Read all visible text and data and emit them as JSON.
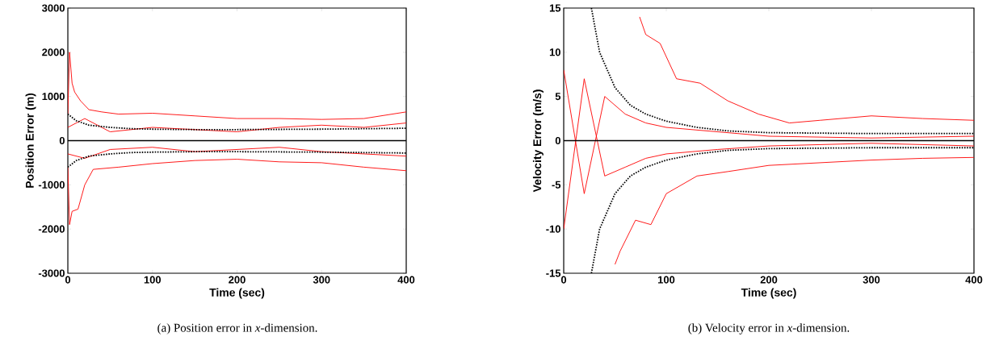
{
  "chart_data": [
    {
      "type": "line",
      "xlabel": "Time (sec)",
      "ylabel": "Position Error (m)",
      "xlim": [
        0,
        400
      ],
      "ylim": [
        -3000,
        3000
      ],
      "xticks": [
        0,
        100,
        200,
        300,
        400
      ],
      "yticks": [
        -3000,
        -2000,
        -1000,
        0,
        1000,
        2000,
        3000
      ],
      "series": [
        {
          "color": "#ff0000",
          "line_style": "solid",
          "x": [
            0,
            2,
            5,
            8,
            15,
            25,
            40,
            60,
            100,
            150,
            200,
            250,
            300,
            350,
            400
          ],
          "values": [
            600,
            2000,
            1300,
            1100,
            900,
            700,
            650,
            600,
            620,
            560,
            500,
            500,
            480,
            500,
            650
          ]
        },
        {
          "color": "#ff0000",
          "line_style": "solid",
          "x": [
            0,
            2,
            5,
            12,
            20,
            30,
            60,
            100,
            150,
            200,
            250,
            300,
            350,
            400
          ],
          "values": [
            -600,
            -1900,
            -1600,
            -1550,
            -1000,
            -650,
            -600,
            -520,
            -450,
            -420,
            -480,
            -500,
            -600,
            -680
          ]
        },
        {
          "color": "#ff0000",
          "line_style": "solid",
          "x": [
            0,
            20,
            50,
            100,
            150,
            200,
            250,
            300,
            350,
            400
          ],
          "values": [
            300,
            500,
            200,
            300,
            250,
            200,
            300,
            350,
            300,
            400
          ]
        },
        {
          "color": "#ff0000",
          "line_style": "solid",
          "x": [
            0,
            20,
            50,
            100,
            150,
            200,
            250,
            300,
            350,
            400
          ],
          "values": [
            -300,
            -400,
            -200,
            -150,
            -250,
            -200,
            -150,
            -250,
            -300,
            -350
          ]
        },
        {
          "color": "#000000",
          "line_style": "dotted",
          "x": [
            0,
            10,
            25,
            50,
            75,
            100,
            150,
            200,
            300,
            400
          ],
          "values": [
            600,
            450,
            350,
            300,
            270,
            260,
            250,
            250,
            260,
            280
          ]
        },
        {
          "color": "#000000",
          "line_style": "dotted",
          "x": [
            0,
            10,
            25,
            50,
            75,
            100,
            150,
            200,
            300,
            400
          ],
          "values": [
            -600,
            -450,
            -350,
            -300,
            -270,
            -260,
            -250,
            -250,
            -260,
            -280
          ]
        }
      ],
      "ref_lines": [
        {
          "axis": "y",
          "value": 0,
          "color": "#000000"
        }
      ],
      "annotations": [
        "(a) Position error in *x*-dimension."
      ]
    },
    {
      "type": "line",
      "xlabel": "Time (sec)",
      "ylabel": "Velocity Error (m/s)",
      "xlim": [
        0,
        400
      ],
      "ylim": [
        -15,
        15
      ],
      "xticks": [
        0,
        100,
        200,
        300,
        400
      ],
      "yticks": [
        -15,
        -10,
        -5,
        0,
        5,
        10,
        15
      ],
      "series": [
        {
          "color": "#ff0000",
          "line_style": "solid",
          "x": [
            74,
            80,
            94,
            110,
            133,
            160,
            190,
            220,
            250,
            300,
            350,
            400
          ],
          "values": [
            14,
            12,
            11,
            7,
            6.5,
            4.5,
            3,
            2,
            2.3,
            2.8,
            2.5,
            2.3
          ]
        },
        {
          "color": "#ff0000",
          "line_style": "solid",
          "x": [
            50,
            55,
            70,
            85,
            100,
            130,
            160,
            200,
            250,
            300,
            350,
            400
          ],
          "values": [
            -14,
            -12.5,
            -9,
            -9.5,
            -6,
            -4,
            -3.5,
            -2.8,
            -2.5,
            -2.2,
            -2,
            -1.9
          ]
        },
        {
          "color": "#ff0000",
          "line_style": "solid",
          "x": [
            0,
            20,
            40,
            60,
            80,
            100,
            150,
            200,
            300,
            400
          ],
          "values": [
            8,
            -6,
            5,
            3,
            2,
            1.5,
            1,
            0.5,
            0.3,
            0.5
          ]
        },
        {
          "color": "#ff0000",
          "line_style": "solid",
          "x": [
            0,
            20,
            40,
            60,
            80,
            100,
            150,
            200,
            300,
            400
          ],
          "values": [
            -10,
            7,
            -4,
            -3,
            -2,
            -1.5,
            -1,
            -0.6,
            -0.3,
            -0.6
          ]
        },
        {
          "color": "#000000",
          "line_style": "dotted",
          "x": [
            27,
            35,
            50,
            65,
            80,
            100,
            130,
            160,
            200,
            300,
            400
          ],
          "values": [
            15,
            10,
            6,
            4,
            3,
            2.2,
            1.5,
            1.1,
            0.9,
            0.8,
            0.8
          ]
        },
        {
          "color": "#000000",
          "line_style": "dotted",
          "x": [
            27,
            35,
            50,
            65,
            80,
            100,
            130,
            160,
            200,
            300,
            400
          ],
          "values": [
            -15,
            -10,
            -6,
            -4,
            -3,
            -2.2,
            -1.5,
            -1.1,
            -0.9,
            -0.8,
            -0.8
          ]
        }
      ],
      "ref_lines": [
        {
          "axis": "y",
          "value": 0,
          "color": "#000000"
        }
      ],
      "annotations": [
        "(b) Velocity error in *x*-dimension."
      ]
    }
  ]
}
